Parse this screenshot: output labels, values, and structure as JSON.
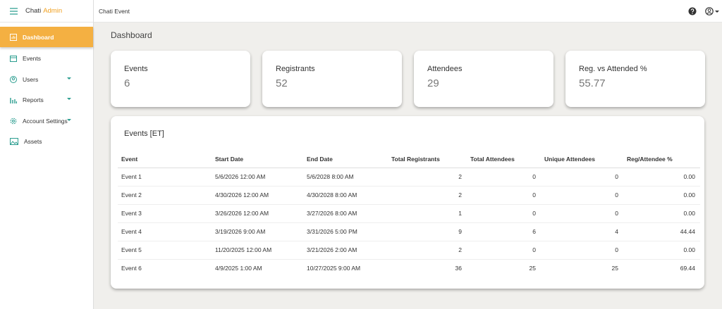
{
  "sidebar": {
    "brand": "Chati",
    "brand_accent": "Admin",
    "items": [
      "Dashboard",
      "Events",
      "Users",
      "Reports",
      "Account Settings",
      "Assets"
    ]
  },
  "topbar": {
    "title": "Chati Event"
  },
  "page_title": "Dashboard",
  "cards": [
    {
      "label": "Events",
      "value": "6"
    },
    {
      "label": "Registrants",
      "value": "52"
    },
    {
      "label": "Attendees",
      "value": "29"
    },
    {
      "label": "Reg. vs Attended %",
      "value": "55.77"
    }
  ],
  "table": {
    "title": "Events [ET]",
    "columns": [
      "Event",
      "Start Date",
      "End Date",
      "Total Registrants",
      "Total Attendees",
      "Unique Attendees",
      "Reg/Attendee %"
    ],
    "rows": [
      [
        "Event 1",
        "5/6/2026 12:00 AM",
        "5/6/2028 8:00 AM",
        "2",
        "0",
        "0",
        "0.00"
      ],
      [
        "Event 2",
        "4/30/2026 12:00 AM",
        "4/30/2028 8:00 AM",
        "2",
        "0",
        "0",
        "0.00"
      ],
      [
        "Event 3",
        "3/26/2026 12:00 AM",
        "3/27/2026 8:00 AM",
        "1",
        "0",
        "0",
        "0.00"
      ],
      [
        "Event 4",
        "3/19/2026 9:00 AM",
        "3/31/2026 5:00 PM",
        "9",
        "6",
        "4",
        "44.44"
      ],
      [
        "Event 5",
        "11/20/2025 12:00 AM",
        "3/21/2026 2:00 AM",
        "2",
        "0",
        "0",
        "0.00"
      ],
      [
        "Event 6",
        "4/9/2025 1:00 AM",
        "10/27/2025 9:00 AM",
        "36",
        "25",
        "25",
        "69.44"
      ]
    ]
  }
}
